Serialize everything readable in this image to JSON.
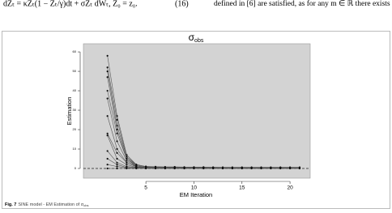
{
  "text": {
    "equation": "dZₜ = κZₜ(1 − Zₜ/γ)dt + σZₜ dWₜ,  Z₀ = z₀.",
    "equation_number": "(16)",
    "right_column": "defined in [6] are satisfied, as for any m ∈ ℝ there exists"
  },
  "caption": {
    "label": "Fig. 7",
    "text": "SINE model - EM Estimation of σ",
    "text_sub": "obs"
  },
  "chart_data": {
    "type": "line",
    "title": "σ",
    "title_sub": "obs",
    "x_label": "EM Iteration",
    "y_label": "Estimation",
    "x": [
      1,
      2,
      3,
      4,
      5,
      6,
      7,
      8,
      9,
      10,
      11,
      12,
      13,
      14,
      15,
      16,
      17,
      18,
      19,
      20,
      21
    ],
    "xlim": [
      -1.5,
      22.1
    ],
    "xticks": [
      5,
      10,
      15,
      20
    ],
    "ylim": [
      -5,
      64.2
    ],
    "yticks": [
      0,
      10,
      20,
      30,
      40,
      50,
      60
    ],
    "hline": 0,
    "color": "#555555",
    "point_color": "#111111",
    "background": "#d3d3d3",
    "series": [
      {
        "values": [
          58,
          27,
          7,
          2,
          1,
          0.9,
          0.8,
          0.8,
          0.7,
          0.7,
          0.7,
          0.6,
          0.6,
          0.6,
          0.6,
          0.6,
          0.6,
          0.6,
          0.6,
          0.6,
          0.6
        ]
      },
      {
        "values": [
          52,
          25,
          6,
          2,
          1,
          0.8,
          0.7,
          0.7,
          0.6,
          0.6,
          0.6,
          0.6,
          0.5,
          0.5,
          0.5,
          0.5,
          0.5,
          0.5,
          0.5,
          0.5,
          0.5
        ]
      },
      {
        "values": [
          50,
          22,
          6,
          1.5,
          0.8,
          0.7,
          0.6,
          0.6,
          0.6,
          0.5,
          0.5,
          0.5,
          0.5,
          0.5,
          0.5,
          0.5,
          0.5,
          0.5,
          0.5,
          0.5,
          0.5
        ]
      },
      {
        "values": [
          47,
          20,
          5,
          1.5,
          0.8,
          0.6,
          0.6,
          0.5,
          0.5,
          0.5,
          0.5,
          0.5,
          0.5,
          0.4,
          0.4,
          0.4,
          0.4,
          0.4,
          0.4,
          0.4,
          0.4
        ]
      },
      {
        "values": [
          40,
          18,
          5,
          1,
          0.5,
          0.5,
          0.4,
          0.4,
          0.4,
          0.4,
          0.4,
          0.4,
          0.4,
          0.4,
          0.4,
          0.4,
          0.4,
          0.4,
          0.4,
          0.4,
          0.4
        ]
      },
      {
        "values": [
          36,
          14,
          4,
          1,
          0.5,
          0.4,
          0.4,
          0.4,
          0.3,
          0.3,
          0.3,
          0.3,
          0.3,
          0.3,
          0.3,
          0.3,
          0.3,
          0.3,
          0.3,
          0.3,
          0.3
        ]
      },
      {
        "values": [
          27,
          10,
          3,
          1,
          0.5,
          0.4,
          0.3,
          0.3,
          0.3,
          0.3,
          0.3,
          0.3,
          0.3,
          0.3,
          0.3,
          0.3,
          0.3,
          0.3,
          0.3,
          0.3,
          0.3
        ]
      },
      {
        "values": [
          18,
          8,
          3,
          0.8,
          0.3,
          0.3,
          0.3,
          0.2,
          0.2,
          0.2,
          0.2,
          0.2,
          0.2,
          0.2,
          0.2,
          0.2,
          0.2,
          0.2,
          0.2,
          0.2,
          0.2
        ]
      },
      {
        "values": [
          17,
          5,
          2,
          0.5,
          0.3,
          0.2,
          0.2,
          0.2,
          0.2,
          0.2,
          0.2,
          0.2,
          0.2,
          0.2,
          0.2,
          0.2,
          0.2,
          0.2,
          0.2,
          0.2,
          0.2
        ]
      },
      {
        "values": [
          9,
          3,
          1,
          0.5,
          0.2,
          0.2,
          0.2,
          0.2,
          0.1,
          0.1,
          0.1,
          0.1,
          0.1,
          0.1,
          0.1,
          0.1,
          0.1,
          0.1,
          0.1,
          0.1,
          0.1
        ]
      },
      {
        "values": [
          5,
          2,
          0.5,
          0.3,
          0.2,
          0.1,
          0.1,
          0.1,
          0.1,
          0.1,
          0.1,
          0.1,
          0.1,
          0.1,
          0.1,
          0.1,
          0.1,
          0.1,
          0.1,
          0.1,
          0.1
        ]
      },
      {
        "values": [
          2,
          1,
          0.3,
          0.2,
          0.1,
          0.1,
          0.1,
          0.1,
          0.1,
          0.1,
          0.1,
          0.1,
          0.1,
          0.1,
          0.1,
          0.1,
          0.1,
          0.1,
          0.1,
          0.1,
          0.1
        ]
      },
      {
        "values": [
          0,
          0,
          0,
          0,
          0,
          0,
          0,
          0,
          0,
          0,
          0,
          0,
          0,
          0,
          0,
          0,
          0,
          0,
          0,
          0,
          0
        ]
      }
    ]
  }
}
